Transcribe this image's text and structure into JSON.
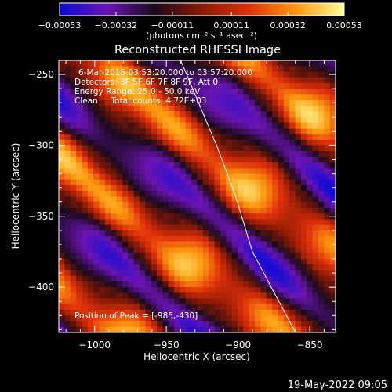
{
  "chart_data": {
    "type": "heatmap",
    "title": "Reconstructed RHESSI Image",
    "info_lines": [
      "6-Mar-2015 03:53:20.000 to 03:57:20.000",
      "Detectors: 3F 5F 6F 7F 8F 9F, Att 0",
      "Energy Range: 25.0 - 50.0 keV",
      "Clean     Total counts: 4.72E+03"
    ],
    "peak_label": "Position of Peak = [-985,-430]",
    "peak": [
      -985,
      -430
    ],
    "xlabel": "Heliocentric X (arcsec)",
    "ylabel": "Heliocentric Y (arcsec)",
    "xlim": [
      -1025,
      -832
    ],
    "ylim": [
      -432,
      -240
    ],
    "x_ticks": [
      -1000,
      -950,
      -900,
      -850
    ],
    "x_tick_labels": [
      "−1000",
      "−950",
      "−900",
      "−850"
    ],
    "y_ticks": [
      -250,
      -300,
      -350,
      -400
    ],
    "y_tick_labels": [
      "−250",
      "−300",
      "−350",
      "−400"
    ],
    "colorbar": {
      "ticks": [
        -0.00053,
        -0.00032,
        -0.00011,
        0.00011,
        0.00032,
        0.00053
      ],
      "tick_labels": [
        "−0.00053",
        "−0.00032",
        "−0.00011",
        "0.00011",
        "0.00032",
        "0.00053"
      ],
      "range": [
        -0.00053,
        0.00053
      ],
      "units": "(photons cm⁻² s⁻¹ asec⁻²)",
      "colors": [
        "#0a0ad8",
        "#6a14b4",
        "#1a0a1a",
        "#8a1a05",
        "#e0300a",
        "#ff9a10",
        "#ffff9a"
      ]
    },
    "limb_line": [
      [
        -940,
        -240
      ],
      [
        -915,
        -300
      ],
      [
        -902,
        -335
      ],
      [
        -890,
        -375
      ],
      [
        -860,
        -432
      ]
    ],
    "grid": false,
    "pattern": "diagonal bright/dark fringe stripes"
  },
  "footer": {
    "timestamp": "19-May-2022 09:05"
  }
}
